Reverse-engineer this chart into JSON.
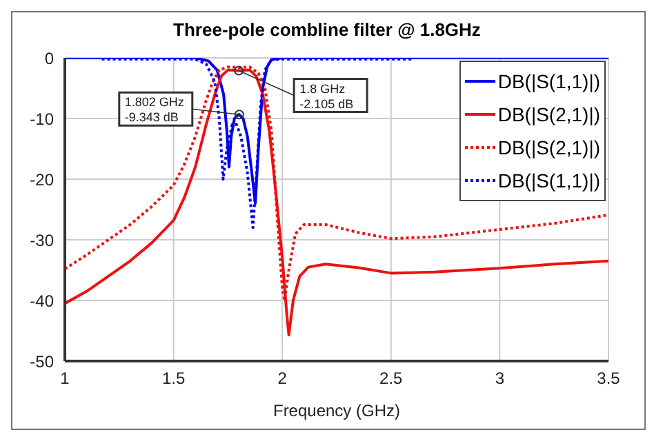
{
  "chart_data": {
    "type": "line",
    "title": "Three-pole combline filter @ 1.8GHz",
    "xlabel": "Frequency (GHz)",
    "xlim": [
      1,
      3.5
    ],
    "xticks": [
      1,
      1.5,
      2,
      2.5,
      3,
      3.5
    ],
    "ylim": [
      -50,
      0
    ],
    "yticks": [
      -50,
      -40,
      -30,
      -20,
      -10,
      0
    ],
    "grid": true,
    "legend": "top right",
    "series": [
      {
        "name": "DB(|S(1,1)|)",
        "color": "#0000ee",
        "line_style": "solid",
        "x": [
          1,
          1.6,
          1.66,
          1.7,
          1.73,
          1.745,
          1.755,
          1.765,
          1.78,
          1.8,
          1.82,
          1.84,
          1.86,
          1.876,
          1.89,
          1.91,
          1.93,
          1.95,
          2.0,
          3.5
        ],
        "values": [
          0,
          0,
          -0.5,
          -2,
          -6,
          -12,
          -18,
          -13,
          -10,
          -9.3,
          -10,
          -13,
          -19,
          -24,
          -15,
          -5,
          -1.5,
          -0.3,
          0,
          0
        ]
      },
      {
        "name": "DB(|S(2,1)|)",
        "color": "#ee1111",
        "line_style": "solid",
        "x": [
          1,
          1.1,
          1.2,
          1.3,
          1.4,
          1.5,
          1.55,
          1.6,
          1.65,
          1.69,
          1.72,
          1.75,
          1.8,
          1.85,
          1.88,
          1.91,
          1.94,
          1.97,
          2.0,
          2.02,
          2.03,
          2.05,
          2.08,
          2.12,
          2.2,
          2.35,
          2.5,
          2.7,
          3.0,
          3.25,
          3.5
        ],
        "values": [
          -40.5,
          -38.5,
          -36,
          -33.5,
          -30.5,
          -26.8,
          -23,
          -18,
          -11,
          -6,
          -3,
          -2,
          -2.1,
          -2,
          -3,
          -6,
          -12,
          -22,
          -33,
          -42,
          -45.7,
          -40,
          -36,
          -34.5,
          -34,
          -34.6,
          -35.5,
          -35.3,
          -34.7,
          -34,
          -33.5
        ]
      },
      {
        "name": "DB(|S(2,1)|)",
        "color": "#ee1111",
        "line_style": "dotted",
        "x": [
          1,
          1.1,
          1.2,
          1.3,
          1.4,
          1.5,
          1.55,
          1.6,
          1.65,
          1.68,
          1.71,
          1.75,
          1.8,
          1.85,
          1.89,
          1.92,
          1.95,
          1.98,
          2.0,
          2.01,
          2.03,
          2.06,
          2.1,
          2.2,
          2.35,
          2.5,
          2.7,
          3.0,
          3.25,
          3.5
        ],
        "values": [
          -34.8,
          -32.5,
          -30,
          -27.5,
          -24.5,
          -21,
          -17.5,
          -13,
          -7,
          -4,
          -2,
          -1.5,
          -1.6,
          -1.5,
          -2.5,
          -5,
          -12,
          -28,
          -38,
          -40,
          -35,
          -29,
          -27.5,
          -27.5,
          -28.8,
          -29.8,
          -29.5,
          -28.3,
          -27.3,
          -25.9
        ]
      },
      {
        "name": "DB(|S(1,1)|)",
        "color": "#0000ee",
        "line_style": "dotted",
        "x": [
          1.17,
          1.6,
          1.65,
          1.69,
          1.71,
          1.728,
          1.745,
          1.77,
          1.79,
          1.81,
          1.84,
          1.865,
          1.88,
          1.9,
          1.92,
          1.95,
          2.0,
          2.6
        ],
        "values": [
          -0.2,
          -0.2,
          -1,
          -4,
          -10,
          -20,
          -15,
          -11,
          -11,
          -13,
          -19,
          -28,
          -20,
          -8,
          -2,
          -0.3,
          -0.2,
          -0.2
        ]
      }
    ],
    "annotations": [
      {
        "text": "1.802 GHz\n-9.343 dB",
        "x": 1.802,
        "y": -9.343
      },
      {
        "text": "1.8 GHz\n-2.105 dB",
        "x": 1.8,
        "y": -2.105
      }
    ]
  }
}
